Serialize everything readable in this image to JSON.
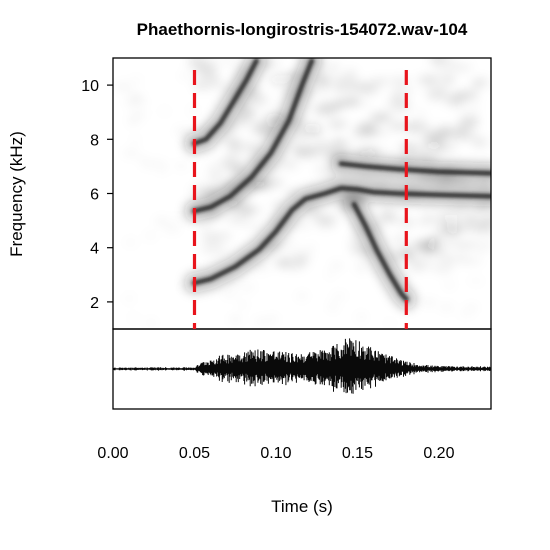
{
  "chart_data": {
    "type": "spectrogram",
    "title": "Phaethornis-longirostris-154072.wav-104",
    "xlabel": "Time (s)",
    "ylabel": "Frequency (kHz)",
    "xlim": [
      0.0,
      0.232
    ],
    "ylim": [
      1.0,
      11.0
    ],
    "x_ticks": [
      {
        "value": 0.0,
        "label": "0.00"
      },
      {
        "value": 0.05,
        "label": "0.05"
      },
      {
        "value": 0.1,
        "label": "0.10"
      },
      {
        "value": 0.15,
        "label": "0.15"
      },
      {
        "value": 0.2,
        "label": "0.20"
      }
    ],
    "y_ticks": [
      {
        "value": 2,
        "label": "2"
      },
      {
        "value": 4,
        "label": "4"
      },
      {
        "value": 6,
        "label": "6"
      },
      {
        "value": 8,
        "label": "8"
      },
      {
        "value": 10,
        "label": "10"
      }
    ],
    "selection_markers": {
      "color": "#e8141c",
      "style": "dashed",
      "times": [
        0.05,
        0.18
      ]
    },
    "grid": false,
    "palette": {
      "ink": "#202020",
      "oscillogram": "#0a0a0a",
      "baseline": "#9a9a9a"
    },
    "tonal_traces": [
      {
        "points": [
          [
            0.05,
            7.85
          ],
          [
            0.057,
            8.0
          ],
          [
            0.066,
            8.6
          ],
          [
            0.074,
            9.4
          ],
          [
            0.082,
            10.2
          ],
          [
            0.088,
            10.9
          ]
        ]
      },
      {
        "points": [
          [
            0.05,
            5.35
          ],
          [
            0.06,
            5.5
          ],
          [
            0.072,
            5.9
          ],
          [
            0.085,
            6.6
          ],
          [
            0.097,
            7.5
          ],
          [
            0.108,
            8.7
          ],
          [
            0.116,
            10.0
          ],
          [
            0.122,
            10.9
          ]
        ]
      },
      {
        "points": [
          [
            0.05,
            2.7
          ],
          [
            0.06,
            2.85
          ],
          [
            0.075,
            3.3
          ],
          [
            0.09,
            3.95
          ],
          [
            0.1,
            4.6
          ],
          [
            0.11,
            5.4
          ],
          [
            0.118,
            5.8
          ],
          [
            0.13,
            6.0
          ],
          [
            0.14,
            6.2
          ],
          [
            0.15,
            6.15
          ],
          [
            0.16,
            6.05
          ],
          [
            0.175,
            6.0
          ],
          [
            0.2,
            5.95
          ],
          [
            0.232,
            5.9
          ]
        ]
      },
      {
        "points": [
          [
            0.148,
            5.6
          ],
          [
            0.155,
            4.8
          ],
          [
            0.162,
            3.9
          ],
          [
            0.17,
            3.0
          ],
          [
            0.177,
            2.3
          ],
          [
            0.18,
            2.1
          ]
        ]
      },
      {
        "points": [
          [
            0.14,
            7.1
          ],
          [
            0.155,
            7.0
          ],
          [
            0.175,
            6.9
          ],
          [
            0.2,
            6.8
          ],
          [
            0.232,
            6.75
          ]
        ]
      }
    ],
    "waveform_envelope": [
      [
        0.0,
        0.04
      ],
      [
        0.05,
        0.05
      ],
      [
        0.055,
        0.2
      ],
      [
        0.065,
        0.35
      ],
      [
        0.08,
        0.5
      ],
      [
        0.09,
        0.55
      ],
      [
        0.1,
        0.5
      ],
      [
        0.11,
        0.42
      ],
      [
        0.12,
        0.45
      ],
      [
        0.13,
        0.55
      ],
      [
        0.14,
        0.7
      ],
      [
        0.145,
        0.95
      ],
      [
        0.15,
        0.8
      ],
      [
        0.16,
        0.55
      ],
      [
        0.17,
        0.35
      ],
      [
        0.18,
        0.2
      ],
      [
        0.19,
        0.12
      ],
      [
        0.2,
        0.08
      ],
      [
        0.232,
        0.07
      ]
    ]
  }
}
